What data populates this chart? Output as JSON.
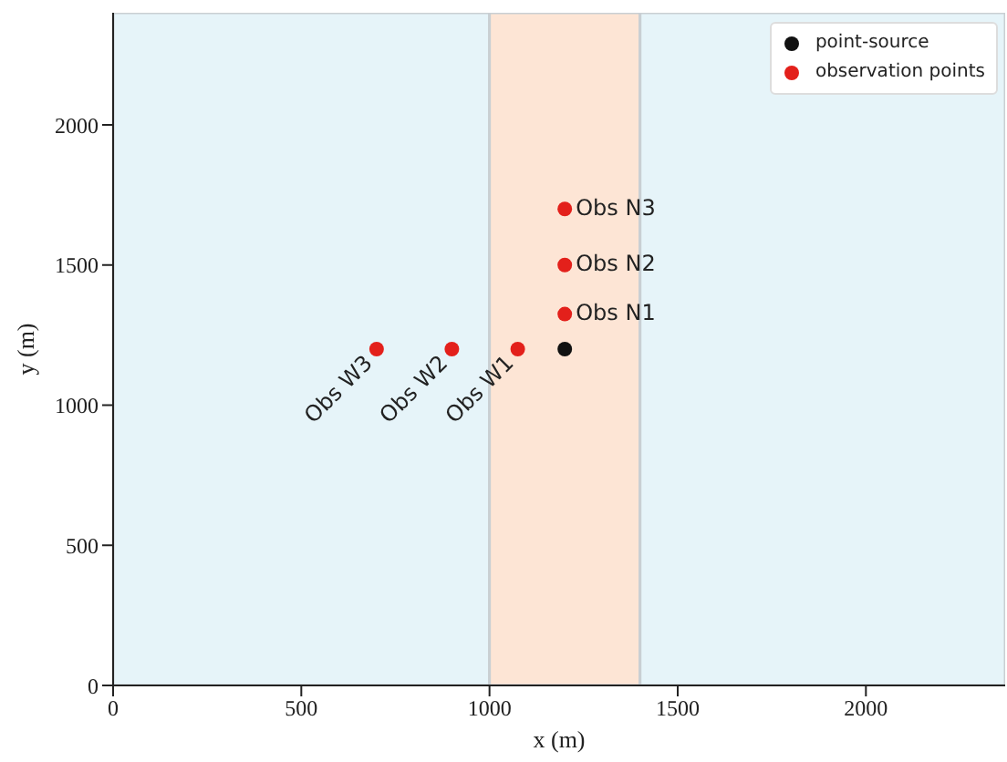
{
  "chart_data": {
    "type": "scatter",
    "xlabel": "x (m)",
    "ylabel": "y (m)",
    "xlim": [
      0,
      2370
    ],
    "ylim": [
      0,
      2400
    ],
    "xticks": [
      0,
      500,
      1000,
      1500,
      2000
    ],
    "yticks": [
      0,
      500,
      1000,
      1500,
      2000
    ],
    "grid": false,
    "legend": "top right",
    "marker": "circle",
    "bands": [
      {
        "axis": "x",
        "from": 0,
        "to": 1000,
        "color": "#e6f4f9"
      },
      {
        "axis": "x",
        "from": 1000,
        "to": 1400,
        "color": "#fde5d5"
      },
      {
        "axis": "x",
        "from": 1400,
        "to": 2370,
        "color": "#e6f4f9"
      }
    ],
    "series": [
      {
        "name": "point-source",
        "color": "#111111",
        "x": [
          1200
        ],
        "values": [
          1200
        ]
      },
      {
        "name": "observation points",
        "color": "#e3201b",
        "x": [
          1075,
          900,
          700,
          1200,
          1200,
          1200
        ],
        "values": [
          1200,
          1200,
          1200,
          1325,
          1500,
          1700
        ]
      }
    ],
    "annotations": [
      {
        "text": "Obs W1",
        "x": 1075,
        "y": 1200
      },
      {
        "text": "Obs W2",
        "x": 900,
        "y": 1200
      },
      {
        "text": "Obs W3",
        "x": 700,
        "y": 1200
      },
      {
        "text": "Obs N1",
        "x": 1200,
        "y": 1325
      },
      {
        "text": "Obs N2",
        "x": 1200,
        "y": 1500
      },
      {
        "text": "Obs N3",
        "x": 1200,
        "y": 1700
      }
    ]
  }
}
